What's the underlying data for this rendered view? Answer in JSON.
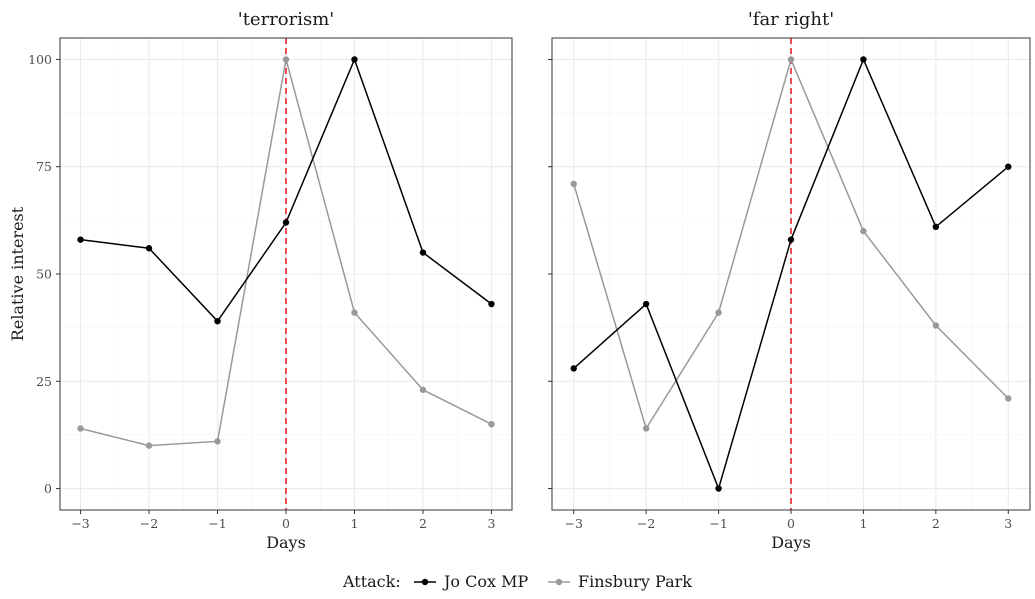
{
  "chart_data": {
    "type": "line",
    "ylabel": "Relative interest",
    "xlabel": "Days",
    "x_ticks": [
      -3,
      -2,
      -1,
      0,
      1,
      2,
      3
    ],
    "x_tick_labels": [
      "−3",
      "−2",
      "−1",
      "0",
      "1",
      "2",
      "3"
    ],
    "y_ticks": [
      0,
      25,
      50,
      75,
      100
    ],
    "xlim": [
      -3.3,
      3.3
    ],
    "ylim": [
      -5,
      105
    ],
    "grid": true,
    "event_line": {
      "x": 0,
      "color": "#e8232b",
      "style": "dashed"
    },
    "legend": {
      "title": "Attack:",
      "position": "bottom",
      "entries": [
        "Jo Cox MP",
        "Finsbury Park"
      ]
    },
    "series_colors": {
      "Jo Cox MP": "#000000",
      "Finsbury Park": "#999999"
    },
    "panels": [
      {
        "title": "'terrorism'",
        "series": [
          {
            "name": "Jo Cox MP",
            "x": [
              -3,
              -2,
              -1,
              0,
              1,
              2,
              3
            ],
            "y": [
              58,
              56,
              39,
              62,
              100,
              55,
              43
            ]
          },
          {
            "name": "Finsbury Park",
            "x": [
              -3,
              -2,
              -1,
              0,
              1,
              2,
              3
            ],
            "y": [
              14,
              10,
              11,
              100,
              41,
              23,
              15
            ]
          }
        ]
      },
      {
        "title": "'far right'",
        "series": [
          {
            "name": "Jo Cox MP",
            "x": [
              -3,
              -2,
              -1,
              0,
              1,
              2,
              3
            ],
            "y": [
              28,
              43,
              0,
              58,
              100,
              61,
              75
            ]
          },
          {
            "name": "Finsbury Park",
            "x": [
              -3,
              -2,
              -1,
              0,
              1,
              2,
              3
            ],
            "y": [
              71,
              14,
              41,
              100,
              60,
              38,
              21
            ]
          }
        ]
      }
    ]
  }
}
